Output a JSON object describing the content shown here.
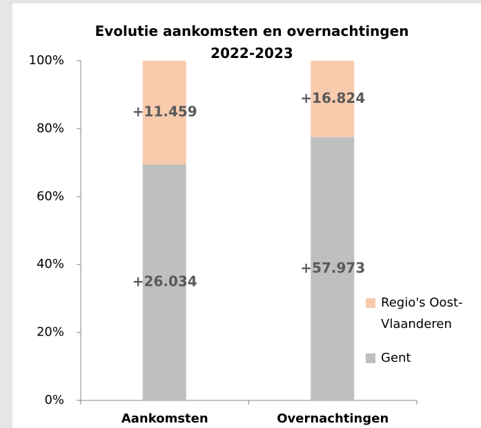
{
  "chart_data": {
    "type": "bar",
    "stacking": "percent",
    "title": "Evolutie aankomsten en overnachtingen 2022-2023",
    "categories": [
      "Aankomsten",
      "Overnachtingen"
    ],
    "series": [
      {
        "name": "Gent",
        "color": "#bfbfbf",
        "values": [
          26034,
          57973
        ],
        "value_labels": [
          "+26.034",
          "+57.973"
        ]
      },
      {
        "name": "Regio's Oost-Vlaanderen",
        "color": "#f8cbad",
        "values": [
          11459,
          16824
        ],
        "value_labels": [
          "+11.459",
          "+16.824"
        ]
      }
    ],
    "ylim": [
      0,
      100
    ],
    "yticks": [
      {
        "value": 0,
        "label": "0%"
      },
      {
        "value": 20,
        "label": "20%"
      },
      {
        "value": 40,
        "label": "40%"
      },
      {
        "value": 60,
        "label": "60%"
      },
      {
        "value": 80,
        "label": "80%"
      },
      {
        "value": 100,
        "label": "100%"
      }
    ],
    "legend": "right"
  }
}
